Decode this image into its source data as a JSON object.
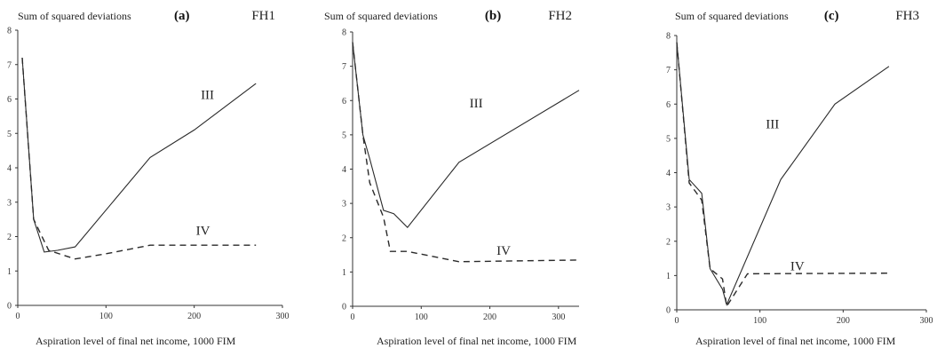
{
  "chart_data": [
    {
      "type": "line",
      "panel": "(a)",
      "code": "FH1",
      "ylabel": "Sum of squared deviations",
      "xlabel": "Aspiration level of final net income, 1000 FIM",
      "xlim": [
        0,
        300
      ],
      "ylim": [
        0,
        8
      ],
      "xticks": [
        0,
        100,
        200,
        300
      ],
      "yticks": [
        0,
        1,
        2,
        3,
        4,
        5,
        6,
        7,
        8
      ],
      "series": [
        {
          "name": "III",
          "style": "solid",
          "x": [
            5,
            18,
            30,
            45,
            65,
            150,
            200,
            270
          ],
          "y": [
            7.2,
            2.5,
            1.55,
            1.6,
            1.7,
            4.3,
            5.1,
            6.45
          ]
        },
        {
          "name": "IV",
          "style": "dashed",
          "x": [
            5,
            18,
            35,
            65,
            100,
            150,
            200,
            270
          ],
          "y": [
            7.2,
            2.5,
            1.6,
            1.35,
            1.5,
            1.75,
            1.75,
            1.75
          ]
        }
      ]
    },
    {
      "type": "line",
      "panel": "(b)",
      "code": "FH2",
      "ylabel": "Sum of squared deviations",
      "xlabel": "Aspiration level of final net income, 1000 FIM",
      "xlim": [
        0,
        330
      ],
      "ylim": [
        0,
        8
      ],
      "xticks": [
        0,
        100,
        200,
        300
      ],
      "yticks": [
        0,
        1,
        2,
        3,
        4,
        5,
        6,
        7,
        8
      ],
      "series": [
        {
          "name": "III",
          "style": "solid",
          "x": [
            0,
            15,
            25,
            45,
            60,
            80,
            155,
            330
          ],
          "y": [
            7.7,
            5.0,
            4.3,
            2.8,
            2.7,
            2.3,
            4.2,
            6.3
          ]
        },
        {
          "name": "IV",
          "style": "dashed",
          "x": [
            0,
            15,
            25,
            45,
            55,
            80,
            155,
            330
          ],
          "y": [
            7.7,
            5.0,
            3.6,
            2.6,
            1.6,
            1.6,
            1.3,
            1.35
          ]
        }
      ]
    },
    {
      "type": "line",
      "panel": "(c)",
      "code": "FH3",
      "ylabel": "Sum of squared deviations",
      "xlabel": "Aspiration level of final net income, 1000 FIM",
      "xlim": [
        0,
        300
      ],
      "ylim": [
        0,
        8
      ],
      "xticks": [
        0,
        100,
        200,
        300
      ],
      "yticks": [
        0,
        1,
        2,
        3,
        4,
        5,
        6,
        7,
        8
      ],
      "series": [
        {
          "name": "III",
          "style": "solid",
          "x": [
            0,
            15,
            30,
            40,
            55,
            60,
            125,
            190,
            255
          ],
          "y": [
            7.8,
            3.8,
            3.4,
            1.2,
            0.6,
            0.15,
            3.8,
            6.0,
            7.1
          ]
        },
        {
          "name": "IV",
          "style": "dashed",
          "x": [
            0,
            15,
            30,
            40,
            55,
            60,
            85,
            255
          ],
          "y": [
            7.8,
            3.7,
            3.2,
            1.2,
            0.9,
            0.1,
            1.05,
            1.07
          ]
        }
      ]
    }
  ],
  "series_labels": [
    {
      "panel": 0,
      "text": "III",
      "x": 215,
      "y": 6.0
    },
    {
      "panel": 0,
      "text": "IV",
      "x": 210,
      "y": 2.05
    },
    {
      "panel": 1,
      "text": "III",
      "x": 180,
      "y": 5.8
    },
    {
      "panel": 1,
      "text": "IV",
      "x": 220,
      "y": 1.5
    },
    {
      "panel": 2,
      "text": "III",
      "x": 115,
      "y": 5.3
    },
    {
      "panel": 2,
      "text": "IV",
      "x": 145,
      "y": 1.15
    }
  ]
}
